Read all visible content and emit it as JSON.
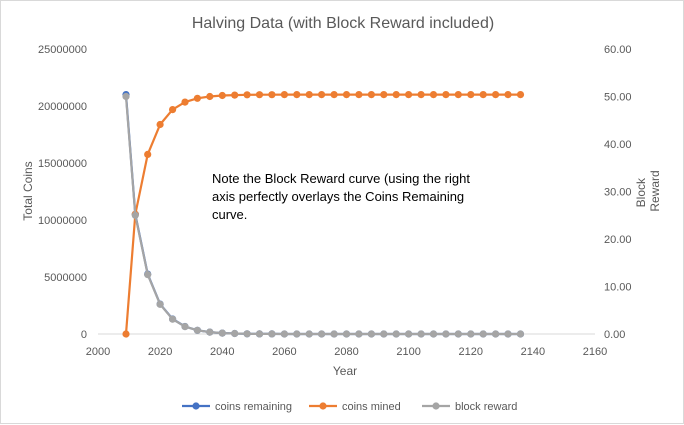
{
  "chart_data": {
    "type": "scatter",
    "title": "Halving Data (with Block Reward included)",
    "xlabel": "Year",
    "ylabel": "Total Coins",
    "ylabel_right": "Block Reward",
    "xlim": [
      2000,
      2160
    ],
    "ylim": [
      0,
      25000000
    ],
    "ylim_right": [
      0,
      60
    ],
    "x_ticks": [
      "2000",
      "2020",
      "2040",
      "2060",
      "2080",
      "2100",
      "2120",
      "2140",
      "2160"
    ],
    "y_ticks": [
      "0",
      "5000000",
      "10000000",
      "15000000",
      "20000000",
      "25000000"
    ],
    "y_ticks_right": [
      "0.00",
      "10.00",
      "20.00",
      "30.00",
      "40.00",
      "50.00",
      "60.00"
    ],
    "grid": false,
    "legend_position": "bottom",
    "annotation": "Note the Block Reward curve (using the right axis perfectly overlays the Coins Remaining curve.",
    "x": [
      2009,
      2012,
      2016,
      2020,
      2024,
      2028,
      2032,
      2036,
      2040,
      2044,
      2048,
      2052,
      2056,
      2060,
      2064,
      2068,
      2072,
      2076,
      2080,
      2084,
      2088,
      2092,
      2096,
      2100,
      2104,
      2108,
      2112,
      2116,
      2120,
      2124,
      2128,
      2132,
      2136
    ],
    "series": [
      {
        "name": "coins remaining",
        "axis": "left",
        "color": "#4472c4",
        "values": [
          21000000,
          10500000,
          5250000,
          2625000,
          1312500,
          656250,
          328125,
          164062,
          82031,
          41016,
          20508,
          10254,
          5127,
          2563,
          1282,
          641,
          320,
          160,
          80,
          40,
          20,
          10,
          5,
          2.5,
          1.3,
          0.6,
          0.3,
          0.2,
          0.1,
          0,
          0,
          0,
          0
        ]
      },
      {
        "name": "coins mined",
        "axis": "left",
        "color": "#ed7d31",
        "values": [
          0,
          10500000,
          15750000,
          18375000,
          19687500,
          20343750,
          20671875,
          20835938,
          20917969,
          20958984,
          20979492,
          20989746,
          20994873,
          20997437,
          20998718,
          20999359,
          20999680,
          20999840,
          20999920,
          20999960,
          20999980,
          20999990,
          20999995,
          20999998,
          20999999,
          21000000,
          21000000,
          21000000,
          21000000,
          21000000,
          21000000,
          21000000,
          21000000
        ]
      },
      {
        "name": "block reward",
        "axis": "right",
        "color": "#a5a5a5",
        "values": [
          50,
          25,
          12.5,
          6.25,
          3.125,
          1.5625,
          0.78125,
          0.390625,
          0.1953,
          0.0977,
          0.0488,
          0.0244,
          0.0122,
          0.0061,
          0.0031,
          0.0015,
          0.0008,
          0.0004,
          0.0002,
          0.0001,
          0,
          0,
          0,
          0,
          0,
          0,
          0,
          0,
          0,
          0,
          0,
          0,
          0
        ]
      }
    ]
  }
}
